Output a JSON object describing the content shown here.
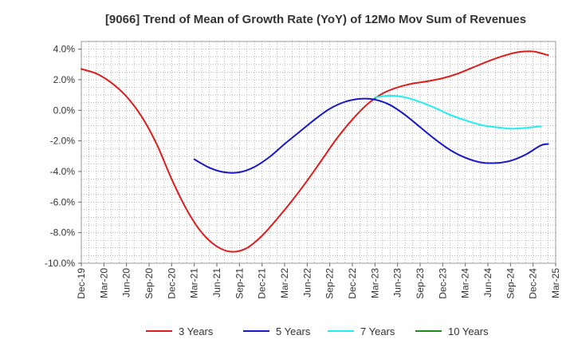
{
  "chart_data": {
    "type": "line",
    "title": "[9066]  Trend of Mean of Growth Rate (YoY) of 12Mo Mov Sum of Revenues",
    "xlabel": "",
    "ylabel": "",
    "ylim": [
      -10,
      4.5
    ],
    "yticks": [
      -10,
      -8,
      -6,
      -4,
      -2,
      0,
      2,
      4
    ],
    "ytick_labels": [
      "-10.0%",
      "-8.0%",
      "-6.0%",
      "-4.0%",
      "-2.0%",
      "0.0%",
      "2.0%",
      "4.0%"
    ],
    "x_categories": [
      "Dec-19",
      "Mar-20",
      "Jun-20",
      "Sep-20",
      "Dec-20",
      "Mar-21",
      "Jun-21",
      "Sep-21",
      "Dec-21",
      "Mar-22",
      "Jun-22",
      "Sep-22",
      "Dec-22",
      "Mar-23",
      "Jun-23",
      "Sep-23",
      "Dec-23",
      "Mar-24",
      "Jun-24",
      "Sep-24",
      "Dec-24",
      "Mar-25"
    ],
    "x_index_unit": "months since Dec-19",
    "grid": true,
    "legend_position": "bottom",
    "series": [
      {
        "name": "3 Years",
        "color": "#dd1c1c",
        "points": [
          [
            0,
            2.7
          ],
          [
            2,
            2.4
          ],
          [
            4,
            1.8
          ],
          [
            6,
            0.9
          ],
          [
            8,
            -0.4
          ],
          [
            10,
            -2.2
          ],
          [
            12,
            -4.5
          ],
          [
            14,
            -6.5
          ],
          [
            16,
            -8.0
          ],
          [
            18,
            -8.9
          ],
          [
            20,
            -9.25
          ],
          [
            22,
            -9.0
          ],
          [
            24,
            -8.2
          ],
          [
            26,
            -7.1
          ],
          [
            28,
            -5.9
          ],
          [
            30,
            -4.6
          ],
          [
            32,
            -3.2
          ],
          [
            34,
            -1.8
          ],
          [
            36,
            -0.6
          ],
          [
            38,
            0.4
          ],
          [
            40,
            1.1
          ],
          [
            42,
            1.5
          ],
          [
            44,
            1.75
          ],
          [
            46,
            1.9
          ],
          [
            48,
            2.1
          ],
          [
            50,
            2.4
          ],
          [
            52,
            2.8
          ],
          [
            54,
            3.2
          ],
          [
            56,
            3.55
          ],
          [
            58,
            3.8
          ],
          [
            60,
            3.85
          ],
          [
            62,
            3.6
          ]
        ]
      },
      {
        "name": "5 Years",
        "color": "#1818c8",
        "points": [
          [
            15,
            -3.2
          ],
          [
            17,
            -3.75
          ],
          [
            19,
            -4.05
          ],
          [
            21,
            -4.05
          ],
          [
            23,
            -3.7
          ],
          [
            25,
            -3.05
          ],
          [
            27,
            -2.2
          ],
          [
            29,
            -1.4
          ],
          [
            31,
            -0.6
          ],
          [
            33,
            0.1
          ],
          [
            35,
            0.55
          ],
          [
            37,
            0.75
          ],
          [
            39,
            0.7
          ],
          [
            41,
            0.35
          ],
          [
            43,
            -0.3
          ],
          [
            45,
            -1.1
          ],
          [
            47,
            -1.9
          ],
          [
            49,
            -2.6
          ],
          [
            51,
            -3.1
          ],
          [
            53,
            -3.4
          ],
          [
            55,
            -3.45
          ],
          [
            57,
            -3.3
          ],
          [
            59,
            -2.9
          ],
          [
            61,
            -2.3
          ],
          [
            62,
            -2.2
          ]
        ]
      },
      {
        "name": "7 Years",
        "color": "#22eeee",
        "points": [
          [
            39,
            0.85
          ],
          [
            41,
            0.95
          ],
          [
            43,
            0.85
          ],
          [
            45,
            0.55
          ],
          [
            47,
            0.15
          ],
          [
            49,
            -0.3
          ],
          [
            51,
            -0.65
          ],
          [
            53,
            -0.95
          ],
          [
            55,
            -1.1
          ],
          [
            57,
            -1.2
          ],
          [
            59,
            -1.15
          ],
          [
            61,
            -1.05
          ]
        ]
      },
      {
        "name": "10 Years",
        "color": "#1a8c1a",
        "points": []
      }
    ]
  }
}
